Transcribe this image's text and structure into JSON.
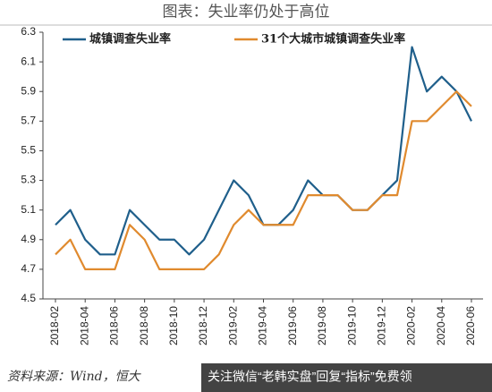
{
  "chart_data": {
    "type": "line",
    "title": "图表：失业率仍处于高位",
    "categories": [
      "2018-02",
      null,
      "2018-04",
      null,
      "2018-06",
      null,
      "2018-08",
      null,
      "2018-10",
      null,
      "2018-12",
      null,
      "2019-02",
      null,
      "2019-04",
      null,
      "2019-06",
      null,
      "2019-08",
      null,
      "2019-10",
      null,
      "2019-12",
      null,
      "2020-02",
      null,
      "2020-04",
      null,
      "2020-06"
    ],
    "series": [
      {
        "name": "城镇调查失业率",
        "color": "#1f5f8b",
        "values": [
          5.0,
          5.1,
          4.9,
          4.8,
          4.8,
          5.1,
          5.0,
          4.9,
          4.9,
          4.8,
          4.9,
          5.1,
          5.3,
          5.2,
          5.0,
          5.0,
          5.1,
          5.3,
          5.2,
          5.2,
          5.1,
          5.1,
          5.2,
          5.3,
          6.2,
          5.9,
          6.0,
          5.9,
          5.7
        ]
      },
      {
        "name": "31个大城市城镇调查失业率",
        "color": "#e08a2e",
        "values": [
          4.8,
          4.9,
          4.7,
          4.7,
          4.7,
          5.0,
          4.9,
          4.7,
          4.7,
          4.7,
          4.7,
          4.8,
          5.0,
          5.1,
          5.0,
          5.0,
          5.0,
          5.2,
          5.2,
          5.2,
          5.1,
          5.1,
          5.2,
          5.2,
          5.7,
          5.7,
          5.8,
          5.9,
          5.8
        ]
      }
    ],
    "ylim": [
      4.5,
      6.3
    ],
    "yticks": [
      4.5,
      4.7,
      4.9,
      5.1,
      5.3,
      5.5,
      5.7,
      5.9,
      6.1,
      6.3
    ],
    "grid": false,
    "source": "资料来源：Wind，恒大",
    "watermark": "关注微信“老韩实盘”回复“指标”免费领"
  }
}
